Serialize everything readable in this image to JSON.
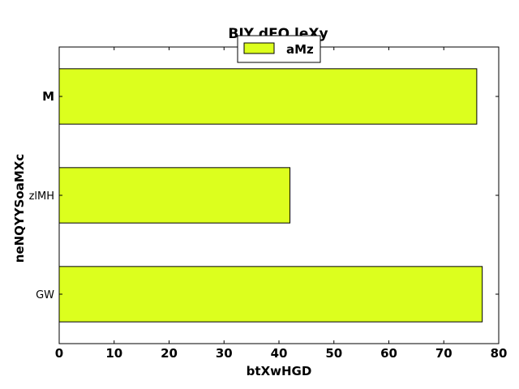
{
  "chart_data": {
    "type": "bar",
    "orientation": "horizontal",
    "title": "BIY dFO leXy",
    "xlabel": "btXwHGD",
    "ylabel": "neNQYYSoaMXc",
    "categories": [
      "GW",
      "zlMH",
      "M"
    ],
    "category_label_bold": [
      false,
      false,
      true
    ],
    "series": [
      {
        "name": "aMz",
        "color": "#dcff1e",
        "values": [
          77,
          42,
          76
        ]
      }
    ],
    "xlim": [
      0,
      80
    ],
    "xticks": [
      0,
      10,
      20,
      30,
      40,
      50,
      60,
      70,
      80
    ],
    "grid": false,
    "legend_position": "top-center"
  }
}
